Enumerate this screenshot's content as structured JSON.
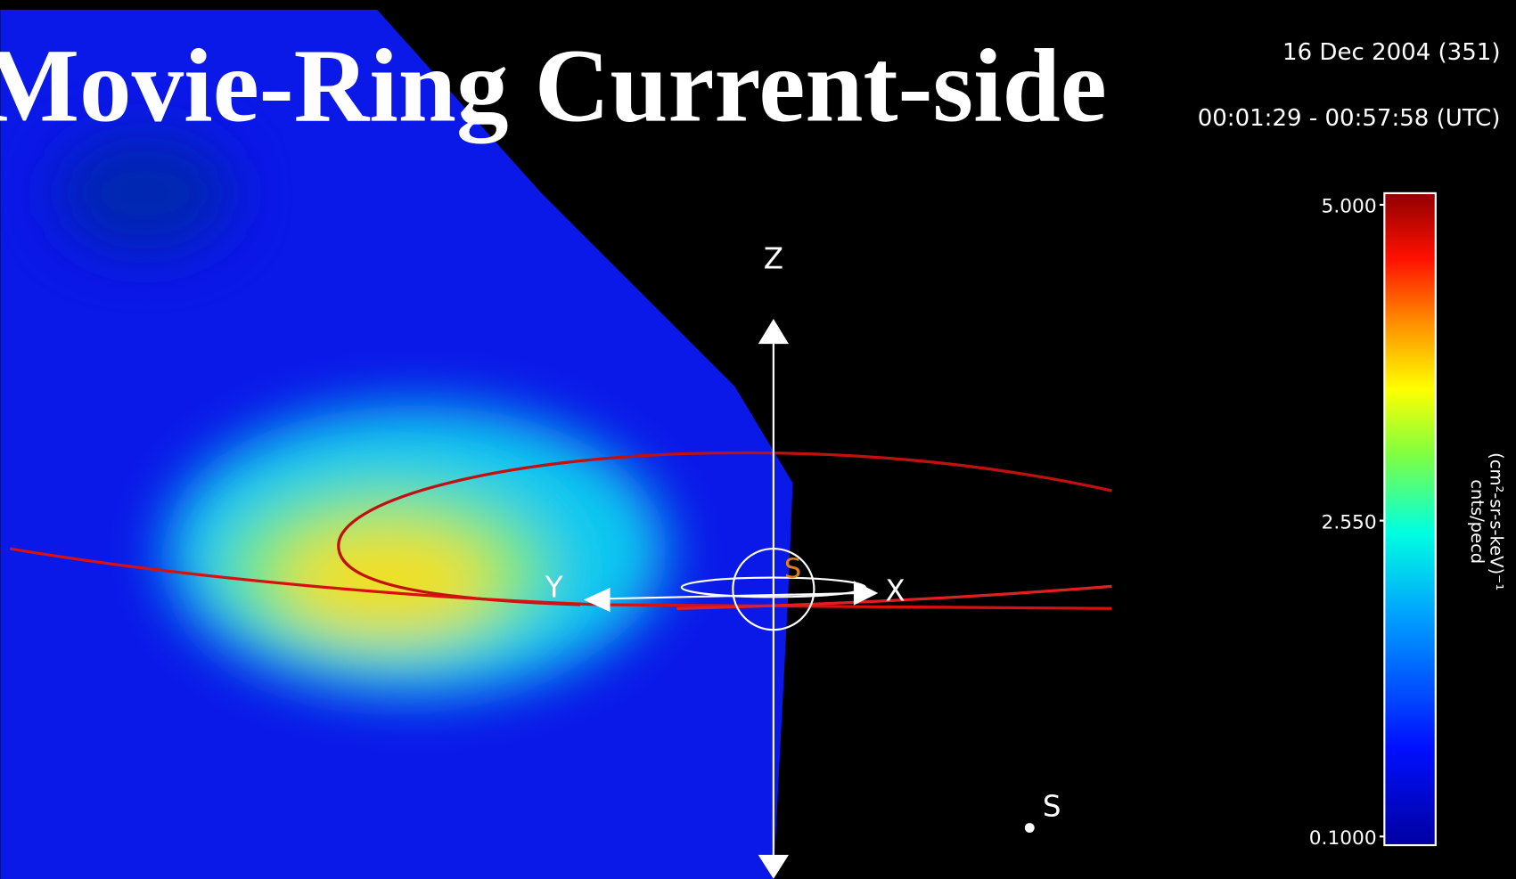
{
  "title": "Movie-Ring Current-side",
  "date": "16 Dec 2004 (351)",
  "time_range": "00:01:29 - 00:57:58 (UTC)",
  "axes": {
    "z": "Z",
    "y": "Y",
    "x": "X"
  },
  "markers": {
    "sun": "S",
    "spacecraft": "S"
  },
  "colorbar": {
    "label": "cnts/pecd",
    "units": "(cm²-sr-s-keV)⁻¹",
    "ticks": [
      {
        "value": 5,
        "label": "5.000"
      },
      {
        "value": 2.55,
        "label": "2.550"
      },
      {
        "value": 0.1,
        "label": "0.1000"
      }
    ]
  }
}
